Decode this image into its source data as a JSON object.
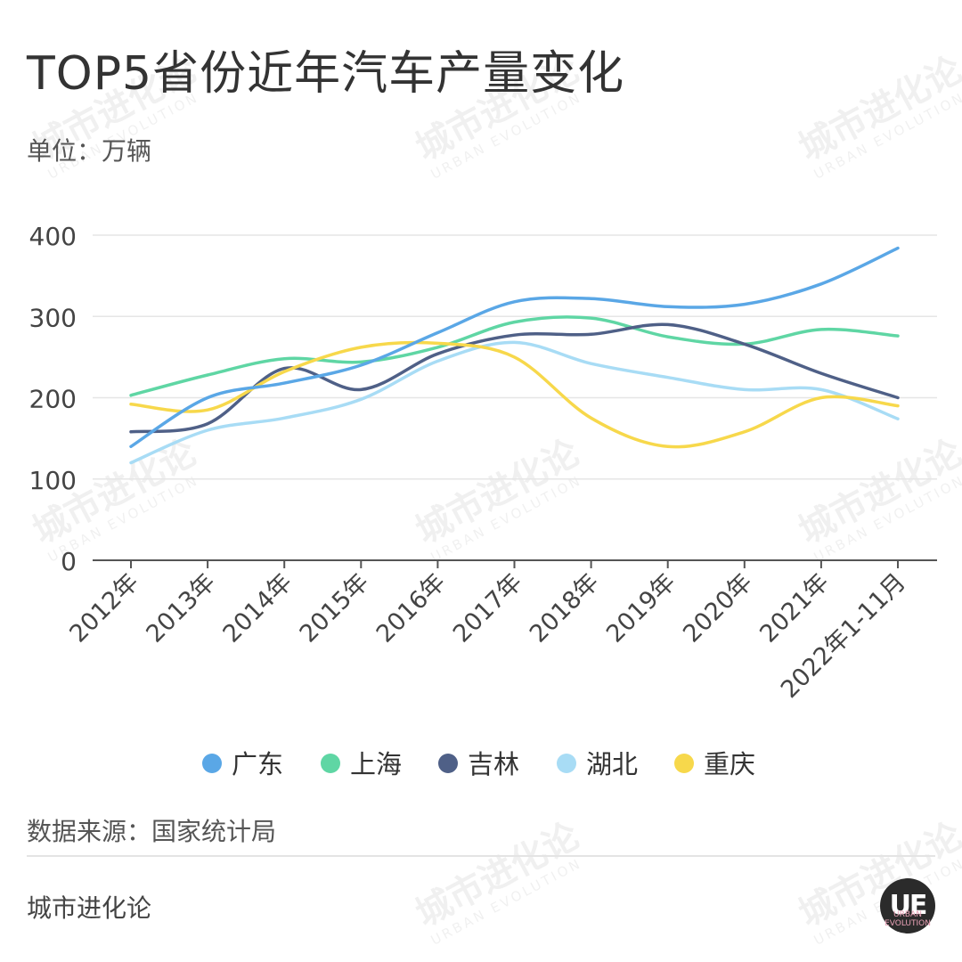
{
  "title": "TOP5省份近年汽车产量变化",
  "unit_label": "单位：万辆",
  "source_label": "数据来源：国家统计局",
  "brand_label": "城市进化论",
  "logo_text": "UE",
  "logo_subtext": "URBAN EVOLUTION",
  "watermark": {
    "cn": "城市进化论",
    "en": "URBAN EVOLUTION"
  },
  "colors": {
    "guangdong": "#5aa7e6",
    "shanghai": "#5fd6a4",
    "jilin": "#4f6087",
    "hubei": "#a8dcf5",
    "chongqing": "#f7d84b",
    "grid": "#e6e6e6",
    "axis": "#555555",
    "text": "#444444"
  },
  "chart_data": {
    "type": "line",
    "title": "TOP5省份近年汽车产量变化",
    "ylabel": "单位：万辆",
    "xlabel": "",
    "ylim": [
      0,
      400
    ],
    "yticks": [
      0,
      100,
      200,
      300,
      400
    ],
    "grid": true,
    "legend_position": "bottom",
    "smooth": true,
    "categories": [
      "2012年",
      "2013年",
      "2014年",
      "2015年",
      "2016年",
      "2017年",
      "2018年",
      "2019年",
      "2020年",
      "2021年",
      "2022年1-11月"
    ],
    "series": [
      {
        "name": "广东",
        "color": "#5aa7e6",
        "values": [
          140,
          200,
          218,
          240,
          280,
          318,
          322,
          312,
          315,
          340,
          384
        ]
      },
      {
        "name": "上海",
        "color": "#5fd6a4",
        "values": [
          203,
          228,
          248,
          244,
          262,
          293,
          298,
          275,
          266,
          284,
          276
        ]
      },
      {
        "name": "吉林",
        "color": "#4f6087",
        "values": [
          158,
          168,
          236,
          210,
          254,
          277,
          278,
          290,
          266,
          230,
          200
        ]
      },
      {
        "name": "湖北",
        "color": "#a8dcf5",
        "values": [
          120,
          160,
          175,
          198,
          245,
          268,
          242,
          225,
          210,
          210,
          174
        ]
      },
      {
        "name": "重庆",
        "color": "#f7d84b",
        "values": [
          192,
          185,
          232,
          262,
          267,
          250,
          175,
          140,
          158,
          200,
          190
        ]
      }
    ]
  }
}
